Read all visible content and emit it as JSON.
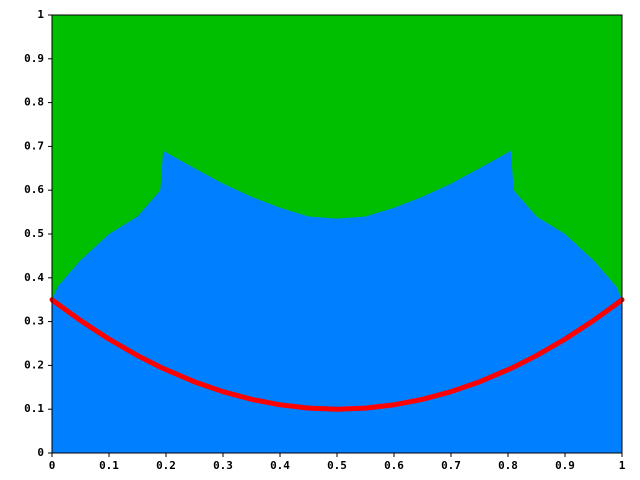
{
  "chart_data": {
    "type": "area",
    "background": "#00bf00",
    "x": [
      0,
      0.01,
      0.05,
      0.1,
      0.15,
      0.19,
      0.195,
      0.25,
      0.3,
      0.35,
      0.4,
      0.45,
      0.5,
      0.55,
      0.6,
      0.65,
      0.7,
      0.75,
      0.805,
      0.81,
      0.85,
      0.9,
      0.95,
      0.99,
      1
    ],
    "series": [
      {
        "type": "area",
        "color": "#0080ff",
        "values": [
          0.35,
          0.38,
          0.44,
          0.5,
          0.54,
          0.6,
          0.69,
          0.65,
          0.615,
          0.585,
          0.56,
          0.54,
          0.535,
          0.54,
          0.56,
          0.585,
          0.615,
          0.65,
          0.69,
          0.6,
          0.54,
          0.5,
          0.44,
          0.38,
          0.35
        ]
      },
      {
        "type": "line",
        "color": "#ff0000",
        "values": [
          0.35,
          0.3401,
          0.3025,
          0.26,
          0.2225,
          0.1961,
          0.193025,
          0.1625,
          0.14,
          0.1225,
          0.11,
          0.1025,
          0.1,
          0.1025,
          0.11,
          0.1225,
          0.14,
          0.1625,
          0.193025,
          0.1961,
          0.2225,
          0.26,
          0.3025,
          0.3401,
          0.35
        ]
      }
    ],
    "xlim": [
      0,
      1
    ],
    "ylim": [
      0,
      1
    ],
    "xticks": [
      0,
      0.1,
      0.2,
      0.3,
      0.4,
      0.5,
      0.6,
      0.7,
      0.8,
      0.9,
      1
    ],
    "yticks": [
      0,
      0.1,
      0.2,
      0.3,
      0.4,
      0.5,
      0.6,
      0.7,
      0.8,
      0.9,
      1
    ]
  }
}
